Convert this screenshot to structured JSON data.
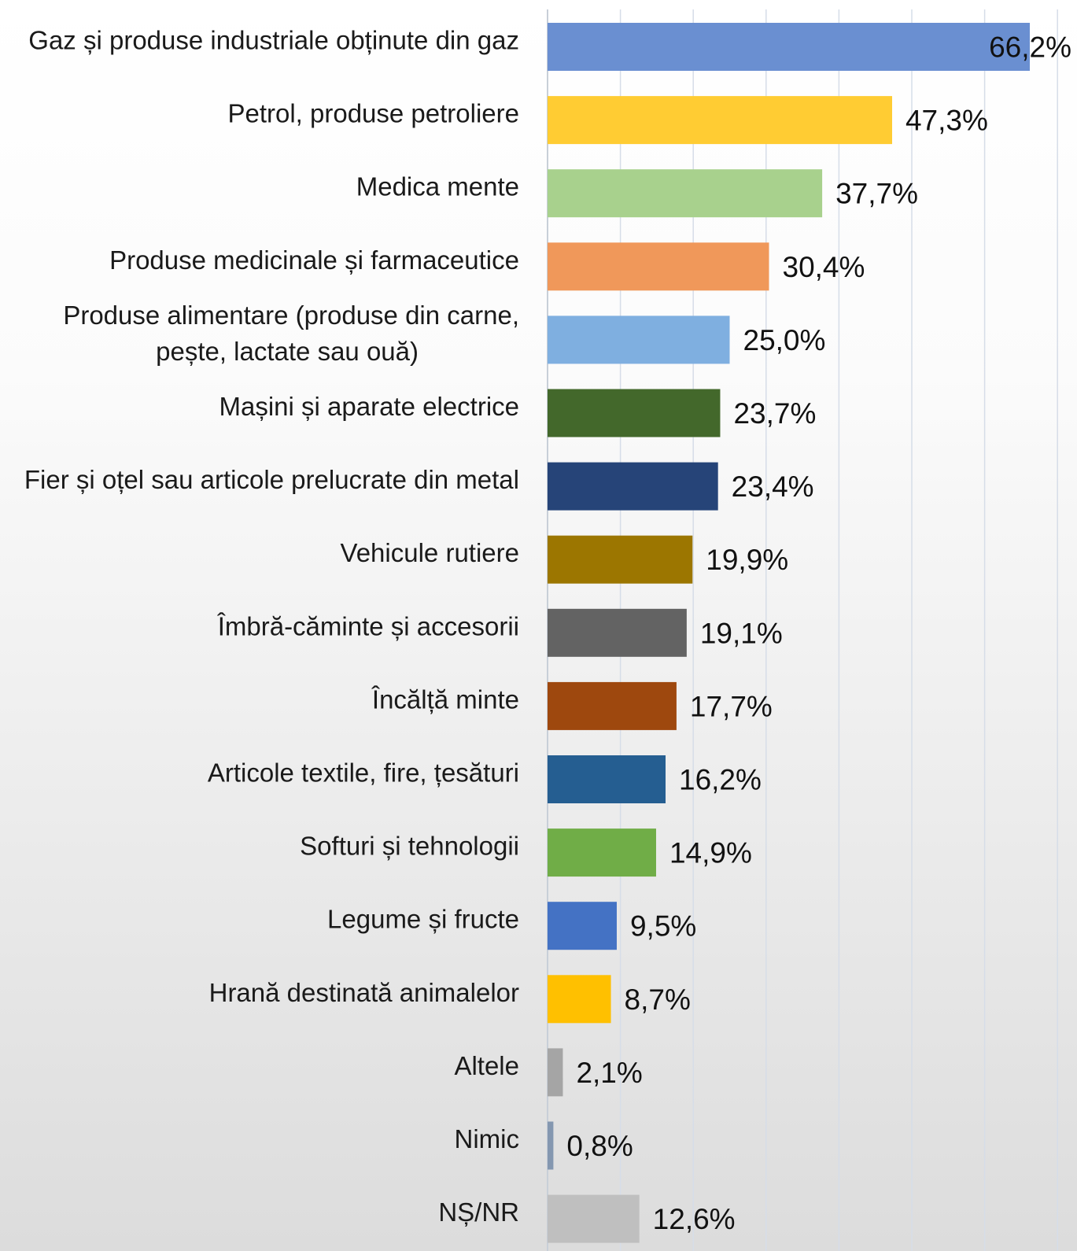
{
  "chart_data": {
    "type": "bar",
    "orientation": "horizontal",
    "categories": [
      "Gaz și produse industriale obținute din gaz",
      "Petrol, produse petroliere",
      "Medica mente",
      "Produse medicinale și farmaceutice",
      "Produse alimentare (produse din carne,\npește, lactate sau ouă)",
      "Mașini și aparate electrice",
      "Fier și oțel sau articole prelucrate din metal",
      "Vehicule rutiere",
      "Îmbră-căminte și accesorii",
      "Încălță minte",
      "Articole textile, fire, țesături",
      "Softuri și tehnologii",
      "Legume  și fructe",
      "Hrană destinată animalelor",
      "Altele",
      "Nimic",
      "NȘ/NR"
    ],
    "values": [
      66.2,
      47.3,
      37.7,
      30.4,
      25.0,
      23.7,
      23.4,
      19.9,
      19.1,
      17.7,
      16.2,
      14.9,
      9.5,
      8.7,
      2.1,
      0.8,
      12.6
    ],
    "value_labels": [
      "66,2%",
      "47,3%",
      "37,7%",
      "30,4%",
      "25,0%",
      "23,7%",
      "23,4%",
      "19,9%",
      "19,1%",
      "17,7%",
      "16,2%",
      "14,9%",
      "9,5%",
      "8,7%",
      "2,1%",
      "0,8%",
      "12,6%"
    ],
    "colors": [
      "#6a8fd1",
      "#ffcc33",
      "#a8d18d",
      "#f0985a",
      "#7fafe0",
      "#43682b",
      "#264478",
      "#9c7600",
      "#636363",
      "#9e480e",
      "#255e91",
      "#70ad47",
      "#4472c4",
      "#ffc000",
      "#a5a5a5",
      "#8497b0",
      "#bfbfbf"
    ],
    "xlim": [
      0,
      72
    ],
    "grid_step": 10,
    "grid": true,
    "legend": "none",
    "title": "",
    "xlabel": "",
    "ylabel": ""
  }
}
